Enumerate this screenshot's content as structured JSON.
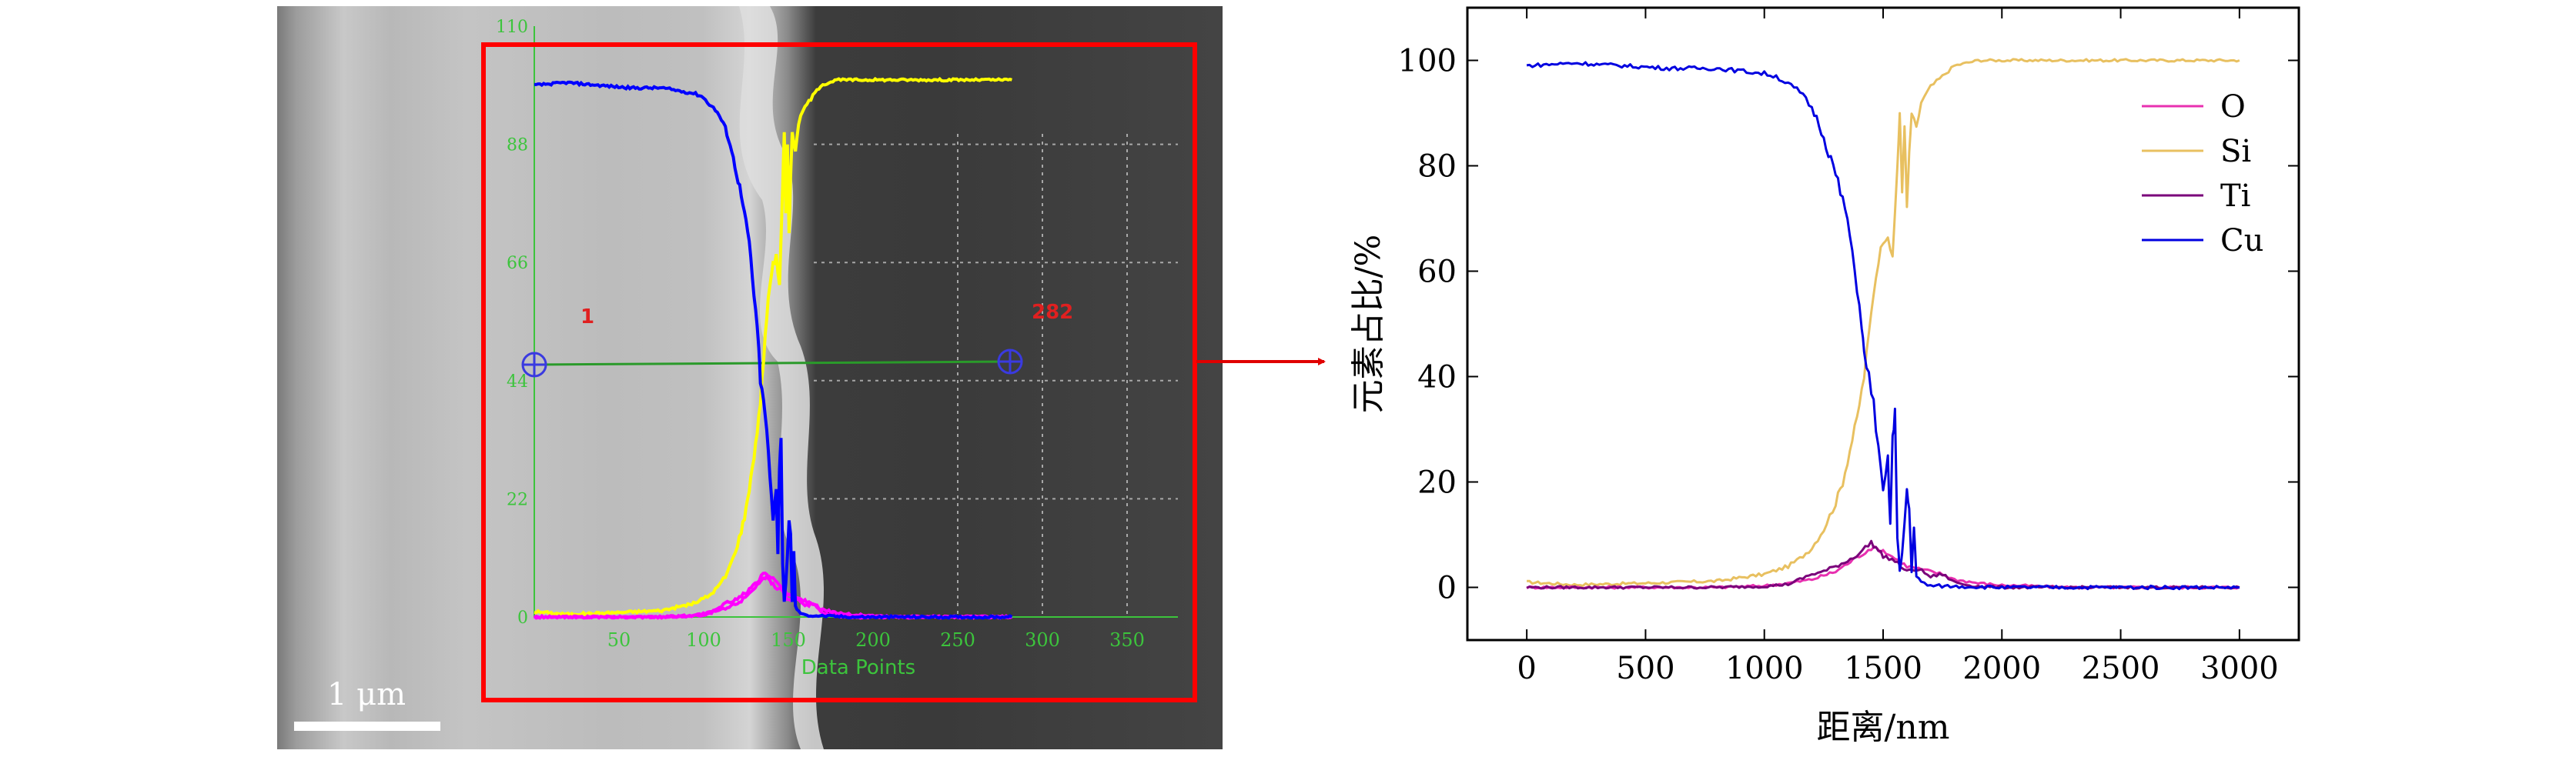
{
  "colors": {
    "frame": "#ff0000",
    "arrow": "#e00000",
    "overlay_grid": "#3cc43c",
    "overlay_label": "#e02020",
    "marker": "#3a3ae0",
    "O": "#e830b0",
    "Si": "#e8c060",
    "Ti": "#7a007a",
    "Cu": "#0000e0",
    "sem_yellow": "#ffff00",
    "sem_blue": "#0000ff",
    "sem_magenta": "#ff00ff"
  },
  "sem": {
    "scale_bar_label": "1 μm",
    "x_axis_label": "Data Points",
    "x_ticks": [
      "50",
      "100",
      "150",
      "200",
      "250",
      "300",
      "350"
    ],
    "y_ticks": [
      "110",
      "88",
      "66",
      "44",
      "22",
      "0"
    ],
    "start_label": "1",
    "end_label": "282"
  },
  "chart_data": {
    "type": "line",
    "title": "",
    "xlabel": "距离/nm",
    "ylabel": "元素占比/%",
    "xlim": [
      -250,
      3250
    ],
    "ylim": [
      -10,
      110
    ],
    "xticks": [
      0,
      500,
      1000,
      1500,
      2000,
      2500,
      3000
    ],
    "yticks": [
      0,
      20,
      40,
      60,
      80,
      100
    ],
    "legend_position": "top-right",
    "series": [
      {
        "name": "O",
        "color": "#e830b0",
        "x": [
          0,
          800,
          1000,
          1100,
          1200,
          1300,
          1350,
          1400,
          1450,
          1500,
          1550,
          1600,
          1650,
          1700,
          1750,
          1800,
          1900,
          2000,
          2100,
          2200,
          2300,
          3000
        ],
        "y": [
          0,
          0,
          0.3,
          0.8,
          1.5,
          3,
          4.5,
          6,
          7.5,
          7,
          5.5,
          4,
          3.5,
          3,
          2.5,
          1.5,
          0.8,
          0.4,
          0.3,
          0.1,
          0,
          0
        ]
      },
      {
        "name": "Si",
        "color": "#e8c060",
        "x": [
          0,
          200,
          500,
          800,
          1000,
          1100,
          1150,
          1200,
          1250,
          1300,
          1330,
          1360,
          1390,
          1420,
          1440,
          1460,
          1480,
          1500,
          1520,
          1540,
          1560,
          1570,
          1580,
          1590,
          1600,
          1610,
          1620,
          1640,
          1660,
          1700,
          1750,
          1800,
          1850,
          1900,
          2000,
          2200,
          3000
        ],
        "y": [
          1,
          0.5,
          0.8,
          1.2,
          2.5,
          4,
          5.5,
          7.5,
          11,
          16,
          20,
          26,
          32,
          40,
          48,
          56,
          62,
          66,
          67,
          62,
          80,
          90,
          75,
          88,
          72,
          82,
          90,
          87,
          92,
          95,
          97,
          99,
          99.5,
          100,
          100,
          100,
          100
        ]
      },
      {
        "name": "Ti",
        "color": "#7a007a",
        "x": [
          0,
          800,
          1000,
          1100,
          1150,
          1200,
          1250,
          1300,
          1350,
          1400,
          1450,
          1480,
          1500,
          1550,
          1600,
          1650,
          1700,
          1750,
          1800,
          1850,
          1900,
          2000,
          3000
        ],
        "y": [
          0,
          0,
          0.2,
          0.6,
          1.5,
          2.5,
          3,
          4,
          5,
          6.5,
          8.5,
          7,
          6,
          5,
          3,
          3.5,
          2,
          2.5,
          1,
          0.5,
          0.2,
          0,
          0
        ]
      },
      {
        "name": "Cu",
        "color": "#0000e0",
        "x": [
          0,
          200,
          400,
          600,
          800,
          900,
          1000,
          1050,
          1100,
          1150,
          1200,
          1230,
          1260,
          1290,
          1320,
          1350,
          1370,
          1390,
          1410,
          1420,
          1440,
          1460,
          1480,
          1500,
          1520,
          1530,
          1540,
          1550,
          1560,
          1570,
          1580,
          1600,
          1610,
          1620,
          1630,
          1640,
          1660,
          1700,
          2000,
          3000
        ],
        "y": [
          99,
          99.5,
          99,
          98.5,
          98.5,
          98,
          97.5,
          97,
          95.5,
          94,
          91,
          88,
          84,
          80,
          75,
          70,
          63,
          57,
          50,
          44,
          40,
          35,
          26,
          18,
          24,
          12,
          28,
          33,
          10,
          3,
          6,
          18,
          15,
          3,
          12,
          2,
          1,
          0.3,
          0,
          0
        ]
      }
    ]
  }
}
